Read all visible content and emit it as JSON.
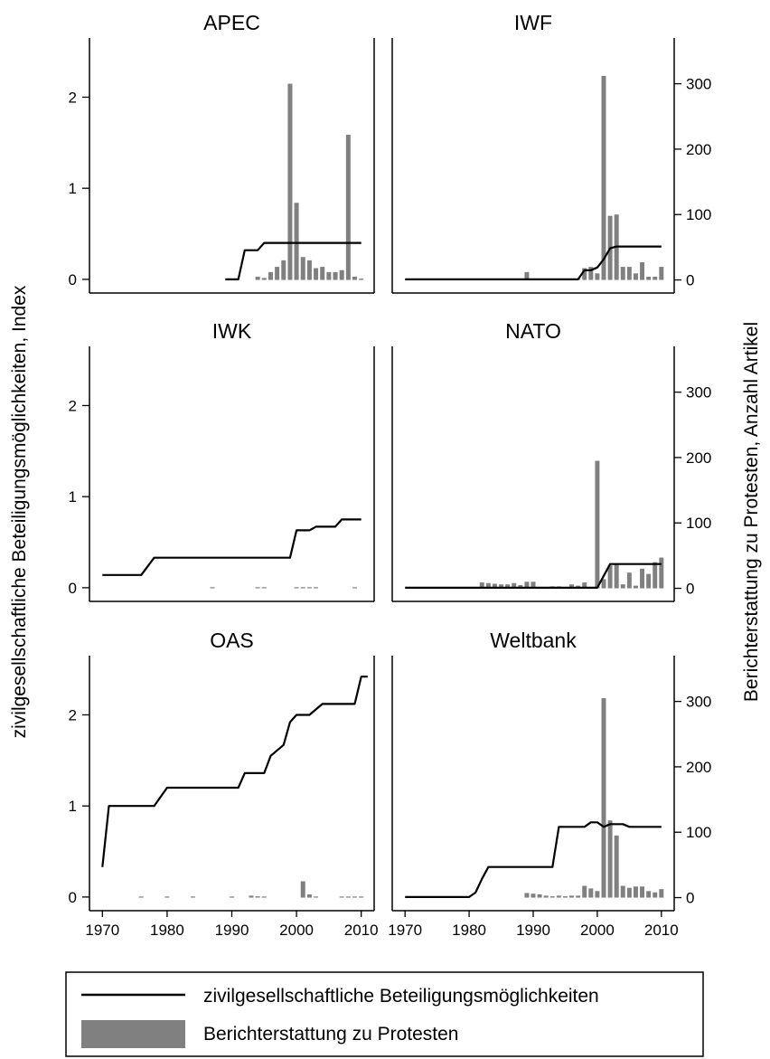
{
  "figure": {
    "ylabel_left": "zivilgesellschaftliche Beteiligungsmöglichkeiten, Index",
    "ylabel_right": "Berichterstattung zu Protesten, Anzahl Artikel"
  },
  "legend": {
    "line_label": "zivilgesellschaftliche Beteiligungsmöglichkeiten",
    "bar_label": "Berichterstattung zu Protesten"
  },
  "colors": {
    "line": "#000000",
    "bar": "#808080"
  },
  "chart_data": {
    "type": "line+bar",
    "layout": "3x2 panel grid",
    "xlim": [
      1968,
      2012
    ],
    "xticks": [
      1970,
      1980,
      1990,
      2000,
      2010
    ],
    "left_axis": {
      "label": "zivilgesellschaftliche Beteiligungsmöglichkeiten, Index",
      "ylim": [
        -0.15,
        2.65
      ],
      "ticks": [
        0,
        1,
        2
      ]
    },
    "right_axis": {
      "label": "Berichterstattung zu Protesten, Anzahl Artikel",
      "ylim": [
        -20,
        370
      ],
      "ticks": [
        0,
        100,
        200,
        300
      ]
    },
    "series_legend": [
      "zivilgesellschaftliche Beteiligungsmöglichkeiten",
      "Berichterstattung zu Protesten"
    ],
    "panels": [
      {
        "title": "APEC",
        "index": [
          [
            1989,
            0
          ],
          [
            1991,
            0
          ],
          [
            1992,
            0.32
          ],
          [
            1994,
            0.32
          ],
          [
            1995,
            0.4
          ],
          [
            2010,
            0.4
          ]
        ],
        "articles": [
          [
            1994,
            5
          ],
          [
            1995,
            3
          ],
          [
            1996,
            12
          ],
          [
            1997,
            20
          ],
          [
            1998,
            30
          ],
          [
            1999,
            300
          ],
          [
            2000,
            118
          ],
          [
            2001,
            35
          ],
          [
            2002,
            30
          ],
          [
            2003,
            18
          ],
          [
            2004,
            20
          ],
          [
            2005,
            12
          ],
          [
            2006,
            12
          ],
          [
            2007,
            15
          ],
          [
            2008,
            222
          ],
          [
            2009,
            5
          ],
          [
            2010,
            2
          ]
        ]
      },
      {
        "title": "IWF",
        "index": [
          [
            1970,
            0
          ],
          [
            1997,
            0
          ],
          [
            1998,
            0.1
          ],
          [
            1999,
            0.1
          ],
          [
            2000,
            0.13
          ],
          [
            2001,
            0.22
          ],
          [
            2002,
            0.34
          ],
          [
            2003,
            0.36
          ],
          [
            2004,
            0.36
          ],
          [
            2010,
            0.36
          ]
        ],
        "articles": [
          [
            1983,
            1
          ],
          [
            1985,
            1
          ],
          [
            1986,
            1
          ],
          [
            1987,
            1
          ],
          [
            1989,
            12
          ],
          [
            1990,
            2
          ],
          [
            1991,
            1
          ],
          [
            1992,
            1
          ],
          [
            1993,
            1
          ],
          [
            1995,
            1
          ],
          [
            1996,
            1
          ],
          [
            1997,
            1
          ],
          [
            1998,
            18
          ],
          [
            1999,
            20
          ],
          [
            2000,
            10
          ],
          [
            2001,
            312
          ],
          [
            2002,
            98
          ],
          [
            2003,
            100
          ],
          [
            2004,
            20
          ],
          [
            2005,
            20
          ],
          [
            2006,
            10
          ],
          [
            2007,
            27
          ],
          [
            2008,
            5
          ],
          [
            2009,
            5
          ],
          [
            2010,
            20
          ]
        ]
      },
      {
        "title": "IWK",
        "index": [
          [
            1970,
            0.14
          ],
          [
            1976,
            0.14
          ],
          [
            1978,
            0.33
          ],
          [
            1999,
            0.33
          ],
          [
            2000,
            0.63
          ],
          [
            2002,
            0.63
          ],
          [
            2003,
            0.67
          ],
          [
            2006,
            0.67
          ],
          [
            2007,
            0.75
          ],
          [
            2010,
            0.75
          ]
        ],
        "articles": [
          [
            1987,
            0.5
          ],
          [
            1994,
            0.5
          ],
          [
            1995,
            1
          ],
          [
            2000,
            1
          ],
          [
            2001,
            0.5
          ],
          [
            2002,
            1
          ],
          [
            2003,
            1
          ],
          [
            2009,
            1
          ]
        ]
      },
      {
        "title": "NATO",
        "index": [
          [
            1970,
            0
          ],
          [
            2000,
            0
          ],
          [
            2001,
            0.13
          ],
          [
            2002,
            0.26
          ],
          [
            2010,
            0.26
          ]
        ],
        "articles": [
          [
            1982,
            9
          ],
          [
            1983,
            8
          ],
          [
            1984,
            7
          ],
          [
            1985,
            6
          ],
          [
            1986,
            6
          ],
          [
            1987,
            8
          ],
          [
            1988,
            5
          ],
          [
            1989,
            10
          ],
          [
            1990,
            10
          ],
          [
            1993,
            3
          ],
          [
            1994,
            3
          ],
          [
            1996,
            6
          ],
          [
            1997,
            4
          ],
          [
            1998,
            9
          ],
          [
            2000,
            195
          ],
          [
            2001,
            14
          ],
          [
            2002,
            35
          ],
          [
            2003,
            37
          ],
          [
            2004,
            6
          ],
          [
            2005,
            24
          ],
          [
            2006,
            4
          ],
          [
            2007,
            30
          ],
          [
            2008,
            22
          ],
          [
            2009,
            40
          ],
          [
            2010,
            47
          ]
        ]
      },
      {
        "title": "OAS",
        "index": [
          [
            1970,
            0.33
          ],
          [
            1971,
            1.0
          ],
          [
            1978,
            1.0
          ],
          [
            1980,
            1.2
          ],
          [
            1991,
            1.2
          ],
          [
            1992,
            1.36
          ],
          [
            1995,
            1.36
          ],
          [
            1996,
            1.55
          ],
          [
            1998,
            1.67
          ],
          [
            1999,
            1.92
          ],
          [
            2000,
            2.0
          ],
          [
            2002,
            2.0
          ],
          [
            2004,
            2.12
          ],
          [
            2009,
            2.12
          ],
          [
            2010,
            2.42
          ],
          [
            2011,
            2.42
          ]
        ],
        "articles": [
          [
            1976,
            1
          ],
          [
            1980,
            1
          ],
          [
            1984,
            1
          ],
          [
            1990,
            1
          ],
          [
            1993,
            3
          ],
          [
            1994,
            2
          ],
          [
            1995,
            1
          ],
          [
            2001,
            25
          ],
          [
            2002,
            5
          ],
          [
            2003,
            1
          ],
          [
            2007,
            1
          ],
          [
            2008,
            1
          ],
          [
            2009,
            1
          ],
          [
            2010,
            1
          ]
        ]
      },
      {
        "title": "Weltbank",
        "index": [
          [
            1970,
            0
          ],
          [
            1980,
            0
          ],
          [
            1981,
            0.05
          ],
          [
            1982,
            0.2
          ],
          [
            1983,
            0.33
          ],
          [
            1993,
            0.33
          ],
          [
            1994,
            0.77
          ],
          [
            1998,
            0.77
          ],
          [
            1999,
            0.82
          ],
          [
            2000,
            0.82
          ],
          [
            2001,
            0.77
          ],
          [
            2002,
            0.8
          ],
          [
            2004,
            0.8
          ],
          [
            2005,
            0.77
          ],
          [
            2010,
            0.77
          ]
        ],
        "articles": [
          [
            1989,
            7
          ],
          [
            1990,
            6
          ],
          [
            1991,
            5
          ],
          [
            1992,
            3
          ],
          [
            1993,
            2
          ],
          [
            1994,
            3
          ],
          [
            1995,
            2
          ],
          [
            1996,
            3
          ],
          [
            1997,
            3
          ],
          [
            1998,
            18
          ],
          [
            1999,
            14
          ],
          [
            2000,
            10
          ],
          [
            2001,
            305
          ],
          [
            2002,
            118
          ],
          [
            2003,
            95
          ],
          [
            2004,
            18
          ],
          [
            2005,
            15
          ],
          [
            2006,
            17
          ],
          [
            2007,
            17
          ],
          [
            2008,
            10
          ],
          [
            2009,
            8
          ],
          [
            2010,
            13
          ]
        ]
      }
    ]
  }
}
